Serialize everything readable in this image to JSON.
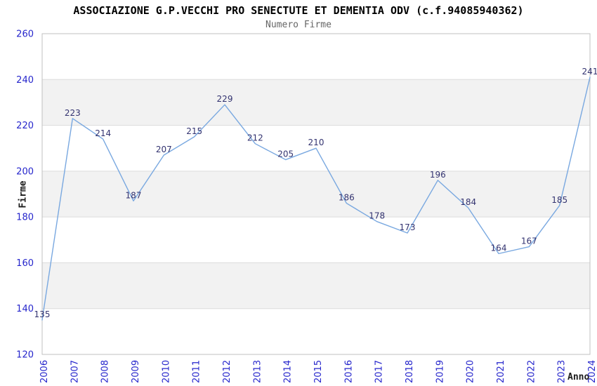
{
  "chart_data": {
    "type": "line",
    "title": "ASSOCIAZIONE G.P.VECCHI PRO SENECTUTE ET DEMENTIA ODV (c.f.94085940362)",
    "subtitle": "Numero Firme",
    "xlabel": "Anno",
    "ylabel": "Firme",
    "x": [
      2006,
      2007,
      2008,
      2009,
      2010,
      2011,
      2012,
      2013,
      2014,
      2015,
      2016,
      2017,
      2018,
      2019,
      2020,
      2021,
      2022,
      2023,
      2024
    ],
    "values": [
      135,
      223,
      214,
      187,
      207,
      215,
      229,
      212,
      205,
      210,
      186,
      178,
      173,
      196,
      184,
      164,
      167,
      185,
      241
    ],
    "ylim": [
      120,
      260
    ],
    "ytick_step": 20,
    "yticks": [
      120,
      140,
      160,
      180,
      200,
      220,
      240,
      260
    ],
    "grid": true,
    "legend_position": "none",
    "value_labels_shown": true,
    "colors": {
      "line": "#79a8e0",
      "tick_labels": "#2626cc",
      "value_labels": "#333370",
      "band": "#f2f2f2",
      "gridline": "#dcdcdc",
      "border": "#c0c0c0",
      "title": "#000000",
      "subtitle": "#666666"
    }
  }
}
